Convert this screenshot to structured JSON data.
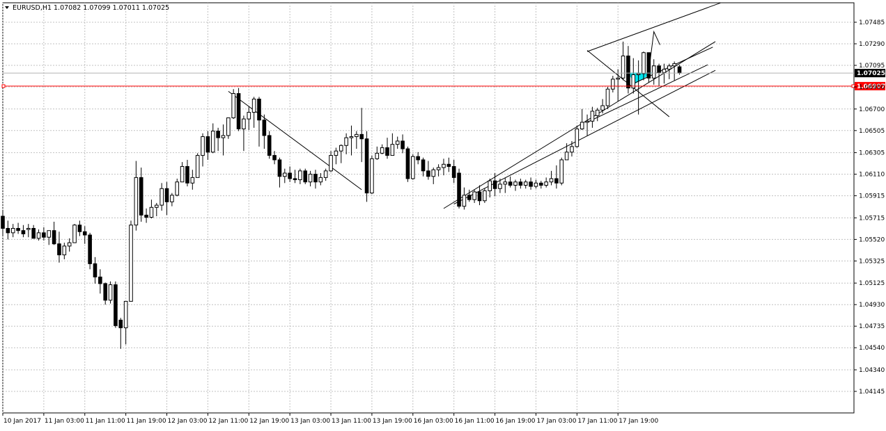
{
  "header": {
    "symbol": "EURUSD,H1",
    "ohlc": "1.07082 1.07099 1.07011 1.07025",
    "menu_icon": "triangle-down-icon"
  },
  "colors": {
    "background": "#ffffff",
    "grid": "#c0c0c0",
    "candle_outline": "#000000",
    "bull_fill": "#ffffff",
    "bear_fill": "#000000",
    "current_price_tag": "#000000",
    "alert_line": "#ff0000",
    "alert_tag": "#ff0000",
    "zone_fill": "#00e5ee"
  },
  "current_price": {
    "value": 1.07025,
    "label": "1.07025"
  },
  "alert_level": {
    "value": 1.06907,
    "label": "1.06907"
  },
  "chart_data": {
    "type": "candlestick",
    "symbol": "EURUSD",
    "timeframe": "H1",
    "ylim": [
      1.04145,
      1.0768
    ],
    "grid": true,
    "y_ticks": [
      "1.07485",
      "1.07290",
      "1.07095",
      "1.06900",
      "1.06700",
      "1.06505",
      "1.06305",
      "1.06110",
      "1.05915",
      "1.05715",
      "1.05520",
      "1.05325",
      "1.05125",
      "1.04930",
      "1.04735",
      "1.04540",
      "1.04340",
      "1.04145"
    ],
    "x_ticks": [
      "10 Jan 2017",
      "11 Jan 03:00",
      "11 Jan 11:00",
      "11 Jan 19:00",
      "12 Jan 03:00",
      "12 Jan 11:00",
      "12 Jan 19:00",
      "13 Jan 03:00",
      "13 Jan 11:00",
      "13 Jan 19:00",
      "16 Jan 03:00",
      "16 Jan 11:00",
      "16 Jan 19:00",
      "17 Jan 03:00",
      "17 Jan 11:00",
      "17 Jan 19:00"
    ],
    "bars_per_x_tick": 8,
    "candles": [
      [
        1.0573,
        1.0578,
        1.0555,
        1.0562
      ],
      [
        1.0562,
        1.0569,
        1.0552,
        1.0558
      ],
      [
        1.0558,
        1.0566,
        1.0554,
        1.0562
      ],
      [
        1.0562,
        1.0567,
        1.0557,
        1.056
      ],
      [
        1.056,
        1.0565,
        1.0554,
        1.0557
      ],
      [
        1.0561,
        1.0566,
        1.0554,
        1.0562
      ],
      [
        1.0562,
        1.0565,
        1.0553,
        1.0553
      ],
      [
        1.0553,
        1.0561,
        1.0551,
        1.0558
      ],
      [
        1.0558,
        1.0563,
        1.0551,
        1.0554
      ],
      [
        1.0554,
        1.056,
        1.0547,
        1.056
      ],
      [
        1.056,
        1.0568,
        1.0547,
        1.0548
      ],
      [
        1.0548,
        1.0559,
        1.0531,
        1.0538
      ],
      [
        1.0538,
        1.0549,
        1.0534,
        1.0546
      ],
      [
        1.0546,
        1.0553,
        1.0541,
        1.0549
      ],
      [
        1.0549,
        1.0566,
        1.0549,
        1.0565
      ],
      [
        1.0565,
        1.0569,
        1.0555,
        1.0559
      ],
      [
        1.0559,
        1.0564,
        1.0548,
        1.0556
      ],
      [
        1.0556,
        1.0558,
        1.0525,
        1.053
      ],
      [
        1.053,
        1.0536,
        1.0512,
        1.0518
      ],
      [
        1.0518,
        1.0525,
        1.0503,
        1.0512
      ],
      [
        1.0512,
        1.0513,
        1.0493,
        1.0497
      ],
      [
        1.0497,
        1.0514,
        1.0494,
        1.0511
      ],
      [
        1.0511,
        1.0514,
        1.0472,
        1.0474
      ],
      [
        1.0479,
        1.0481,
        1.0453,
        1.0472
      ],
      [
        1.0472,
        1.0496,
        1.0457,
        1.0496
      ],
      [
        1.0496,
        1.0569,
        1.0496,
        1.0565
      ],
      [
        1.0565,
        1.0623,
        1.056,
        1.0608
      ],
      [
        1.0608,
        1.0617,
        1.0568,
        1.0574
      ],
      [
        1.0574,
        1.058,
        1.0567,
        1.0572
      ],
      [
        1.0572,
        1.0588,
        1.0571,
        1.0581
      ],
      [
        1.0581,
        1.0585,
        1.0573,
        1.0583
      ],
      [
        1.0583,
        1.0603,
        1.0578,
        1.0598
      ],
      [
        1.0598,
        1.0604,
        1.0574,
        1.0586
      ],
      [
        1.0586,
        1.0594,
        1.0582,
        1.0592
      ],
      [
        1.0592,
        1.0607,
        1.0591,
        1.0604
      ],
      [
        1.0604,
        1.0622,
        1.0604,
        1.0618
      ],
      [
        1.0618,
        1.0624,
        1.06,
        1.0603
      ],
      [
        1.0603,
        1.0615,
        1.0597,
        1.0608
      ],
      [
        1.0608,
        1.063,
        1.0608,
        1.0628
      ],
      [
        1.0628,
        1.0648,
        1.0618,
        1.0645
      ],
      [
        1.0645,
        1.065,
        1.0624,
        1.0631
      ],
      [
        1.0631,
        1.0657,
        1.063,
        1.065
      ],
      [
        1.065,
        1.0653,
        1.0632,
        1.0644
      ],
      [
        1.0644,
        1.0656,
        1.0628,
        1.0646
      ],
      [
        1.0646,
        1.0662,
        1.0643,
        1.0662
      ],
      [
        1.0662,
        1.0688,
        1.0661,
        1.0684
      ],
      [
        1.0684,
        1.0689,
        1.065,
        1.0652
      ],
      [
        1.0652,
        1.0664,
        1.0632,
        1.0661
      ],
      [
        1.0661,
        1.0672,
        1.0651,
        1.0667
      ],
      [
        1.0667,
        1.0681,
        1.0653,
        1.0679
      ],
      [
        1.0679,
        1.0681,
        1.0636,
        1.066
      ],
      [
        1.066,
        1.0665,
        1.0634,
        1.0646
      ],
      [
        1.0646,
        1.065,
        1.0625,
        1.0628
      ],
      [
        1.0628,
        1.0632,
        1.062,
        1.0624
      ],
      [
        1.0624,
        1.0626,
        1.0599,
        1.0609
      ],
      [
        1.0609,
        1.0616,
        1.0603,
        1.0612
      ],
      [
        1.0612,
        1.0618,
        1.0604,
        1.0607
      ],
      [
        1.0607,
        1.0615,
        1.0603,
        1.0606
      ],
      [
        1.0606,
        1.0616,
        1.0602,
        1.0614
      ],
      [
        1.0614,
        1.0616,
        1.0602,
        1.0604
      ],
      [
        1.0604,
        1.0614,
        1.06,
        1.0611
      ],
      [
        1.0611,
        1.0615,
        1.0598,
        1.0604
      ],
      [
        1.0604,
        1.0612,
        1.0601,
        1.0608
      ],
      [
        1.0608,
        1.0616,
        1.0605,
        1.0614
      ],
      [
        1.0614,
        1.0632,
        1.0613,
        1.0628
      ],
      [
        1.0628,
        1.0635,
        1.062,
        1.0632
      ],
      [
        1.0632,
        1.0638,
        1.0621,
        1.0637
      ],
      [
        1.0637,
        1.0648,
        1.0629,
        1.0644
      ],
      [
        1.0644,
        1.0655,
        1.0628,
        1.0645
      ],
      [
        1.0645,
        1.065,
        1.0634,
        1.0647
      ],
      [
        1.0647,
        1.0671,
        1.0622,
        1.0643
      ],
      [
        1.0643,
        1.065,
        1.0586,
        1.0594
      ],
      [
        1.0594,
        1.0628,
        1.0593,
        1.0625
      ],
      [
        1.0625,
        1.0636,
        1.0624,
        1.063
      ],
      [
        1.063,
        1.0638,
        1.0629,
        1.0635
      ],
      [
        1.0635,
        1.0644,
        1.0625,
        1.0628
      ],
      [
        1.0628,
        1.0648,
        1.0628,
        1.0638
      ],
      [
        1.0638,
        1.0645,
        1.0634,
        1.0641
      ],
      [
        1.0641,
        1.0647,
        1.063,
        1.0634
      ],
      [
        1.0634,
        1.0636,
        1.0604,
        1.0607
      ],
      [
        1.0607,
        1.0629,
        1.0606,
        1.0627
      ],
      [
        1.0627,
        1.0631,
        1.062,
        1.0624
      ],
      [
        1.0624,
        1.0626,
        1.0609,
        1.0614
      ],
      [
        1.0614,
        1.0623,
        1.0606,
        1.0609
      ],
      [
        1.0609,
        1.0617,
        1.0602,
        1.0615
      ],
      [
        1.0615,
        1.062,
        1.0609,
        1.0617
      ],
      [
        1.0617,
        1.0625,
        1.061,
        1.062
      ],
      [
        1.062,
        1.0626,
        1.0613,
        1.0618
      ],
      [
        1.0618,
        1.0624,
        1.0603,
        1.0608
      ],
      [
        1.0612,
        1.0616,
        1.058,
        1.0582
      ],
      [
        1.0582,
        1.0599,
        1.0579,
        1.0592
      ],
      [
        1.0592,
        1.0597,
        1.0586,
        1.0588
      ],
      [
        1.0588,
        1.0597,
        1.0585,
        1.0595
      ],
      [
        1.0595,
        1.0601,
        1.0583,
        1.0587
      ],
      [
        1.0587,
        1.0598,
        1.0585,
        1.0596
      ],
      [
        1.0596,
        1.0607,
        1.059,
        1.0605
      ],
      [
        1.0605,
        1.0612,
        1.0591,
        1.0598
      ],
      [
        1.0598,
        1.0607,
        1.0594,
        1.0602
      ],
      [
        1.0602,
        1.0608,
        1.0594,
        1.0604
      ],
      [
        1.0604,
        1.0609,
        1.0599,
        1.0601
      ],
      [
        1.0601,
        1.0606,
        1.0596,
        1.0604
      ],
      [
        1.0604,
        1.0607,
        1.0598,
        1.0601
      ],
      [
        1.0601,
        1.0606,
        1.0598,
        1.0604
      ],
      [
        1.0604,
        1.0608,
        1.0597,
        1.06
      ],
      [
        1.06,
        1.0606,
        1.0598,
        1.0603
      ],
      [
        1.0603,
        1.0605,
        1.0598,
        1.0601
      ],
      [
        1.0601,
        1.0608,
        1.0599,
        1.0604
      ],
      [
        1.0604,
        1.0614,
        1.0601,
        1.0607
      ],
      [
        1.0607,
        1.0619,
        1.0598,
        1.0603
      ],
      [
        1.0603,
        1.0626,
        1.0601,
        1.0624
      ],
      [
        1.0624,
        1.0639,
        1.0624,
        1.0631
      ],
      [
        1.0631,
        1.0641,
        1.0627,
        1.0636
      ],
      [
        1.0636,
        1.0655,
        1.0635,
        1.0652
      ],
      [
        1.0652,
        1.067,
        1.0651,
        1.0658
      ],
      [
        1.0658,
        1.0665,
        1.0646,
        1.0659
      ],
      [
        1.0659,
        1.0672,
        1.0653,
        1.0668
      ],
      [
        1.0664,
        1.0671,
        1.0659,
        1.0669
      ],
      [
        1.0669,
        1.0679,
        1.0666,
        1.0673
      ],
      [
        1.0673,
        1.069,
        1.067,
        1.0688
      ],
      [
        1.0688,
        1.07,
        1.0685,
        1.0697
      ],
      [
        1.0697,
        1.0706,
        1.0677,
        1.0698
      ],
      [
        1.0698,
        1.0731,
        1.0696,
        1.0718
      ],
      [
        1.0718,
        1.0727,
        1.0684,
        1.0689
      ],
      [
        1.0689,
        1.0716,
        1.0684,
        1.0701
      ],
      [
        1.0701,
        1.0714,
        1.0665,
        1.0702
      ],
      [
        1.0702,
        1.0722,
        1.0696,
        1.0721
      ],
      [
        1.0721,
        1.0721,
        1.0694,
        1.0698
      ],
      [
        1.0698,
        1.0715,
        1.0692,
        1.0709
      ],
      [
        1.0709,
        1.0711,
        1.0691,
        1.0703
      ],
      [
        1.0703,
        1.0711,
        1.0693,
        1.0706
      ],
      [
        1.0706,
        1.0711,
        1.0697,
        1.0709
      ],
      [
        1.0709,
        1.0713,
        1.0696,
        1.0711
      ],
      [
        1.07082,
        1.07099,
        1.07011,
        1.07025
      ]
    ],
    "trendlines": [
      {
        "from": [
          44,
          1.0686
        ],
        "to": [
          70,
          1.0597
        ]
      },
      {
        "from": [
          86,
          1.058
        ],
        "to": [
          139,
          1.0731
        ]
      },
      {
        "from": [
          88,
          1.0584
        ],
        "to": [
          139,
          1.0705
        ]
      },
      {
        "from": [
          114,
          1.0658
        ],
        "to": [
          137.5,
          1.071
        ]
      },
      {
        "from": [
          114,
          1.0722
        ],
        "to": [
          140,
          1.0766
        ]
      },
      {
        "from": [
          123,
          1.0693
        ],
        "to": [
          138.5,
          1.0726
        ]
      },
      {
        "from": [
          114,
          1.0723
        ],
        "to": [
          130,
          1.0663
        ]
      }
    ],
    "arrow": {
      "points": [
        [
          126,
          1.0704
        ],
        [
          127,
          1.074
        ],
        [
          128.2,
          1.0728
        ]
      ]
    },
    "zone": {
      "points": [
        [
          121.8,
          1.0703
        ],
        [
          123.4,
          1.0693
        ],
        [
          126.8,
          1.0703
        ]
      ]
    }
  }
}
